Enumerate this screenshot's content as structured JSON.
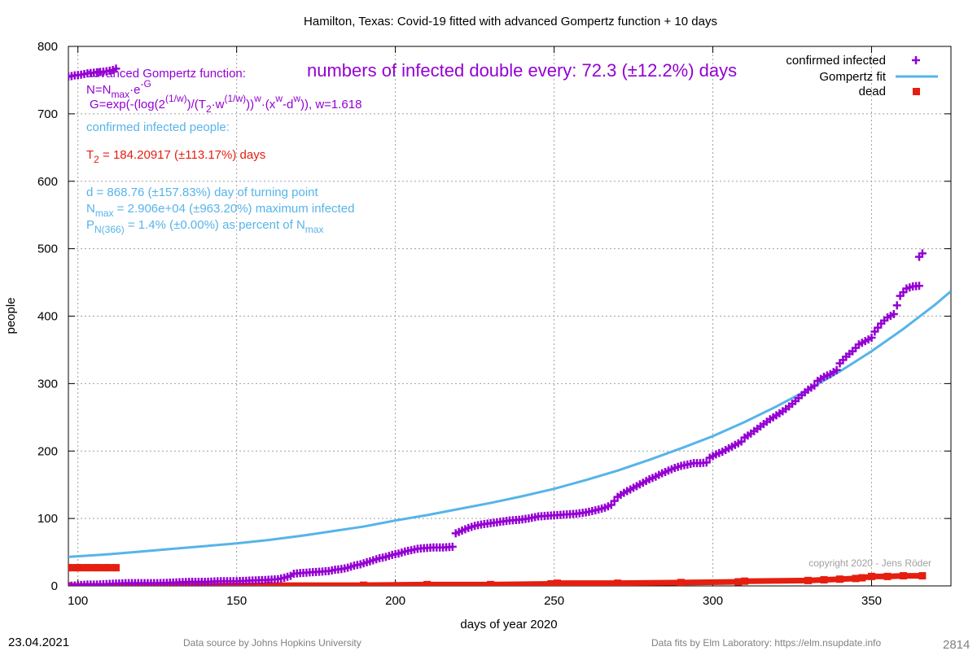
{
  "colors": {
    "confirmed": "#9400d3",
    "fit": "#56b4e9",
    "dead": "#e51e10",
    "grid": "#a0a0a0",
    "copyright": "#a0a0a0",
    "footer": "#808080"
  },
  "chart_data": {
    "type": "line",
    "title": "Hamilton,  Texas: Covid-19 fitted with advanced Gompertz function + 10 days",
    "xlabel": "days of year 2020",
    "ylabel": "people",
    "xlim": [
      97,
      375
    ],
    "ylim": [
      0,
      800
    ],
    "xticks": [
      100,
      150,
      200,
      250,
      300,
      350
    ],
    "yticks": [
      0,
      100,
      200,
      300,
      400,
      500,
      600,
      700,
      800
    ],
    "grid": true,
    "legend_position": "top-right",
    "series": [
      {
        "name": "confirmed infected",
        "marker": "plus",
        "points": [
          [
            97,
            755
          ],
          [
            99,
            757
          ],
          [
            101,
            758
          ],
          [
            103,
            760
          ],
          [
            105,
            761
          ],
          [
            107,
            762
          ],
          [
            109,
            763
          ],
          [
            111,
            765
          ],
          [
            112,
            767
          ],
          [
            97,
            0
          ],
          [
            100,
            1
          ],
          [
            103,
            2
          ],
          [
            106,
            2
          ],
          [
            110,
            3
          ],
          [
            115,
            4
          ],
          [
            120,
            4
          ],
          [
            125,
            4
          ],
          [
            130,
            5
          ],
          [
            135,
            6
          ],
          [
            140,
            6
          ],
          [
            145,
            7
          ],
          [
            150,
            7
          ],
          [
            155,
            8
          ],
          [
            160,
            9
          ],
          [
            163,
            10
          ],
          [
            165,
            12
          ],
          [
            167,
            15
          ],
          [
            168,
            18
          ],
          [
            170,
            19
          ],
          [
            173,
            20
          ],
          [
            176,
            21
          ],
          [
            179,
            22
          ],
          [
            181,
            24
          ],
          [
            183,
            25
          ],
          [
            185,
            27
          ],
          [
            187,
            30
          ],
          [
            189,
            32
          ],
          [
            191,
            35
          ],
          [
            193,
            38
          ],
          [
            195,
            41
          ],
          [
            197,
            43
          ],
          [
            199,
            46
          ],
          [
            201,
            48
          ],
          [
            203,
            51
          ],
          [
            205,
            53
          ],
          [
            207,
            55
          ],
          [
            209,
            56
          ],
          [
            212,
            57
          ],
          [
            215,
            57
          ],
          [
            218,
            58
          ],
          [
            219,
            78
          ],
          [
            221,
            82
          ],
          [
            223,
            86
          ],
          [
            225,
            89
          ],
          [
            227,
            91
          ],
          [
            230,
            93
          ],
          [
            233,
            95
          ],
          [
            236,
            97
          ],
          [
            239,
            98
          ],
          [
            242,
            100
          ],
          [
            245,
            103
          ],
          [
            248,
            104
          ],
          [
            251,
            105
          ],
          [
            254,
            106
          ],
          [
            257,
            107
          ],
          [
            260,
            109
          ],
          [
            263,
            112
          ],
          [
            266,
            116
          ],
          [
            268,
            120
          ],
          [
            269,
            126
          ],
          [
            270,
            132
          ],
          [
            272,
            138
          ],
          [
            274,
            143
          ],
          [
            276,
            148
          ],
          [
            278,
            153
          ],
          [
            280,
            158
          ],
          [
            282,
            162
          ],
          [
            284,
            167
          ],
          [
            286,
            171
          ],
          [
            288,
            175
          ],
          [
            290,
            178
          ],
          [
            292,
            180
          ],
          [
            294,
            182
          ],
          [
            296,
            182
          ],
          [
            298,
            183
          ],
          [
            299,
            190
          ],
          [
            301,
            195
          ],
          [
            303,
            199
          ],
          [
            305,
            204
          ],
          [
            307,
            209
          ],
          [
            309,
            214
          ],
          [
            310,
            220
          ],
          [
            312,
            226
          ],
          [
            314,
            233
          ],
          [
            316,
            240
          ],
          [
            318,
            247
          ],
          [
            320,
            253
          ],
          [
            322,
            259
          ],
          [
            324,
            266
          ],
          [
            326,
            274
          ],
          [
            328,
            283
          ],
          [
            330,
            291
          ],
          [
            332,
            297
          ],
          [
            333,
            304
          ],
          [
            335,
            310
          ],
          [
            337,
            314
          ],
          [
            339,
            320
          ],
          [
            340,
            330
          ],
          [
            342,
            340
          ],
          [
            344,
            348
          ],
          [
            346,
            358
          ],
          [
            348,
            363
          ],
          [
            350,
            368
          ],
          [
            351,
            377
          ],
          [
            353,
            389
          ],
          [
            355,
            398
          ],
          [
            357,
            403
          ],
          [
            358,
            416
          ],
          [
            359,
            430
          ],
          [
            361,
            441
          ],
          [
            363,
            444
          ],
          [
            365,
            445
          ],
          [
            365,
            488
          ],
          [
            366,
            493
          ]
        ]
      },
      {
        "name": "Gompertz fit",
        "points": [
          [
            97,
            43
          ],
          [
            110,
            47
          ],
          [
            120,
            51
          ],
          [
            130,
            55
          ],
          [
            140,
            59
          ],
          [
            150,
            63
          ],
          [
            160,
            68
          ],
          [
            170,
            74
          ],
          [
            180,
            81
          ],
          [
            190,
            88
          ],
          [
            200,
            97
          ],
          [
            210,
            105
          ],
          [
            220,
            114
          ],
          [
            230,
            123
          ],
          [
            240,
            133
          ],
          [
            250,
            144
          ],
          [
            260,
            157
          ],
          [
            270,
            171
          ],
          [
            280,
            187
          ],
          [
            290,
            204
          ],
          [
            300,
            222
          ],
          [
            310,
            243
          ],
          [
            320,
            266
          ],
          [
            330,
            291
          ],
          [
            340,
            318
          ],
          [
            350,
            348
          ],
          [
            360,
            381
          ],
          [
            370,
            417
          ],
          [
            375,
            437
          ]
        ]
      },
      {
        "name": "dead",
        "marker": "square",
        "points": [
          [
            97,
            27
          ],
          [
            100,
            27
          ],
          [
            103,
            27
          ],
          [
            106,
            27
          ],
          [
            109,
            27
          ],
          [
            112,
            27
          ],
          [
            97,
            0
          ],
          [
            130,
            0
          ],
          [
            160,
            1
          ],
          [
            190,
            1
          ],
          [
            210,
            2
          ],
          [
            230,
            2
          ],
          [
            249,
            3
          ],
          [
            251,
            4
          ],
          [
            270,
            4
          ],
          [
            290,
            5
          ],
          [
            308,
            6
          ],
          [
            310,
            7
          ],
          [
            330,
            8
          ],
          [
            335,
            9
          ],
          [
            340,
            10
          ],
          [
            345,
            11
          ],
          [
            347,
            12
          ],
          [
            350,
            14
          ],
          [
            355,
            14
          ],
          [
            360,
            15
          ],
          [
            366,
            15
          ]
        ]
      }
    ],
    "annotations": {
      "formula_title": "advanced Gompertz function:",
      "formula_n_prefix": "N=N",
      "formula_n_sub": "max",
      "formula_n_mid": "·e",
      "formula_n_sup": "-G",
      "formula_g_prefix": "G=exp(-(log(2",
      "formula_g_sup1": "(1/w)",
      "formula_g_mid1": ")/(T",
      "formula_g_sub1": "2",
      "formula_g_mid2": "·w",
      "formula_g_sup2": "(1/w)",
      "formula_g_mid3": "))",
      "formula_g_sup3": "w",
      "formula_g_mid4": "·(x",
      "formula_g_sup4": "w",
      "formula_g_mid5": "-d",
      "formula_g_sup5": "w",
      "formula_g_end": ")), w=1.618",
      "doubling": "numbers of infected double every: 72.3 (±12.2%) days",
      "confirmed_heading": "confirmed infected people:",
      "t2_prefix": "T",
      "t2_sub": "2",
      "t2_value": " = 184.20917 (±113.17%) days",
      "turning_point": "d = 868.76 (±157.83%) day of turning point",
      "nmax_prefix": "N",
      "nmax_sub": "max",
      "nmax_value": " = 2.906e+04 (±963.20%) maximum infected",
      "p_prefix": "P",
      "p_sub": "N(366)",
      "p_value": " = 1.4% (±0.00%) as percent of N",
      "p_sub2": "max",
      "copyright": "copyright 2020 - Jens Röder"
    }
  },
  "footer": {
    "date": "23.04.2021",
    "source": "Data source by Johns Hopkins University",
    "fits": "Data fits by Elm Laboratory: https://elm.nsupdate.info",
    "page_number": "2814"
  }
}
